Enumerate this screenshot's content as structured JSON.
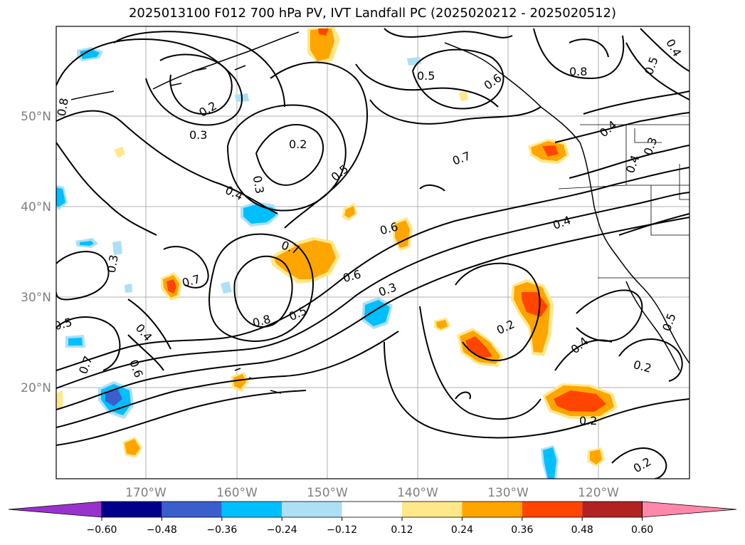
{
  "title": "2025013100 F012 700 hPa PV, IVT Landfall PC (2025020212 - 2025020512)",
  "map": {
    "lat_ticks": [
      "20°N",
      "30°N",
      "40°N",
      "50°N"
    ],
    "lon_ticks": [
      "170°W",
      "160°W",
      "150°W",
      "140°W",
      "130°W",
      "120°W"
    ],
    "contour_labels": [
      "0.8",
      "0.2",
      "0.3",
      "0.2",
      "0.4",
      "0.3",
      "0.5",
      "0.6",
      "0.5",
      "0.8",
      "0.7",
      "0.4",
      "0.4",
      "0.3",
      "0.6",
      "0.3",
      "0.5",
      "0.7",
      "0.6",
      "0.7",
      "0.8",
      "0.5",
      "0.5",
      "0.4",
      "0.6",
      "0.7",
      "0.2",
      "0.4",
      "0.2",
      "0.2",
      "0.2",
      "0.4",
      "0.3",
      "0.5",
      "0.4"
    ]
  },
  "colorbar": {
    "tick_labels": [
      "−0.60",
      "−0.48",
      "−0.36",
      "−0.24",
      "−0.12",
      "0.12",
      "0.24",
      "0.36",
      "0.48",
      "0.60"
    ],
    "colors": [
      "#9932CC",
      "#00008B",
      "#3A5FCD",
      "#00BFFF",
      "#ADE0F5",
      "#FFFFFF",
      "#FFE88A",
      "#FFA500",
      "#FF4500",
      "#B22222",
      "#FF88AA"
    ]
  }
}
